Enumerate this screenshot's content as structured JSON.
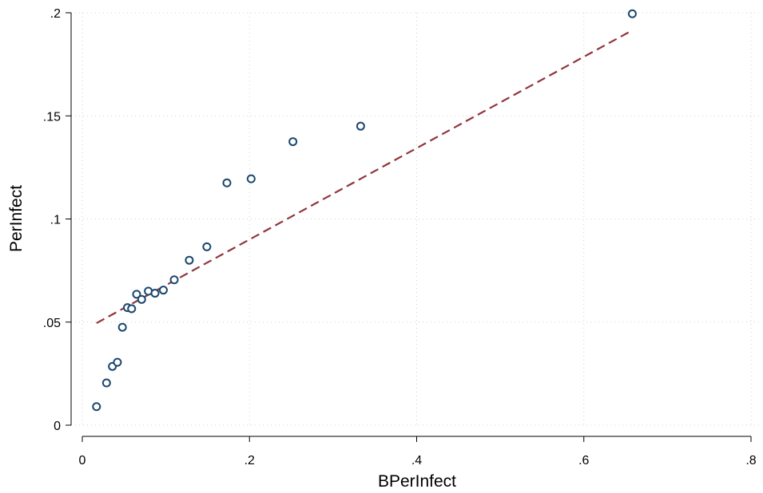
{
  "chart_data": {
    "type": "scatter",
    "title": "",
    "xlabel": "BPerInfect",
    "ylabel": "PerInfect",
    "xlim": [
      0,
      0.8
    ],
    "ylim": [
      0,
      0.2
    ],
    "x_ticks": [
      {
        "value": 0,
        "label": "0"
      },
      {
        "value": 0.2,
        "label": ".2"
      },
      {
        "value": 0.4,
        "label": ".4"
      },
      {
        "value": 0.6,
        "label": ".6"
      },
      {
        "value": 0.8,
        "label": ".8"
      }
    ],
    "y_ticks": [
      {
        "value": 0,
        "label": "0"
      },
      {
        "value": 0.05,
        "label": ".05"
      },
      {
        "value": 0.1,
        "label": ".1"
      },
      {
        "value": 0.15,
        "label": ".15"
      },
      {
        "value": 0.2,
        "label": ".2"
      }
    ],
    "grid": true,
    "series": [
      {
        "kind": "scatter",
        "marker": "hollow-circle",
        "color": "#1a476f",
        "points": [
          [
            0.017,
            0.009
          ],
          [
            0.029,
            0.0205
          ],
          [
            0.036,
            0.0285
          ],
          [
            0.042,
            0.0305
          ],
          [
            0.048,
            0.0475
          ],
          [
            0.054,
            0.057
          ],
          [
            0.059,
            0.0565
          ],
          [
            0.065,
            0.0635
          ],
          [
            0.071,
            0.061
          ],
          [
            0.079,
            0.065
          ],
          [
            0.087,
            0.064
          ],
          [
            0.097,
            0.0655
          ],
          [
            0.11,
            0.0705
          ],
          [
            0.128,
            0.08
          ],
          [
            0.149,
            0.0865
          ],
          [
            0.173,
            0.1175
          ],
          [
            0.202,
            0.1195
          ],
          [
            0.252,
            0.1375
          ],
          [
            0.333,
            0.145
          ],
          [
            0.658,
            0.1995
          ]
        ]
      },
      {
        "kind": "line",
        "style": "dashed",
        "color": "#90353b",
        "points": [
          [
            0.017,
            0.0495
          ],
          [
            0.658,
            0.1915
          ]
        ]
      }
    ]
  }
}
